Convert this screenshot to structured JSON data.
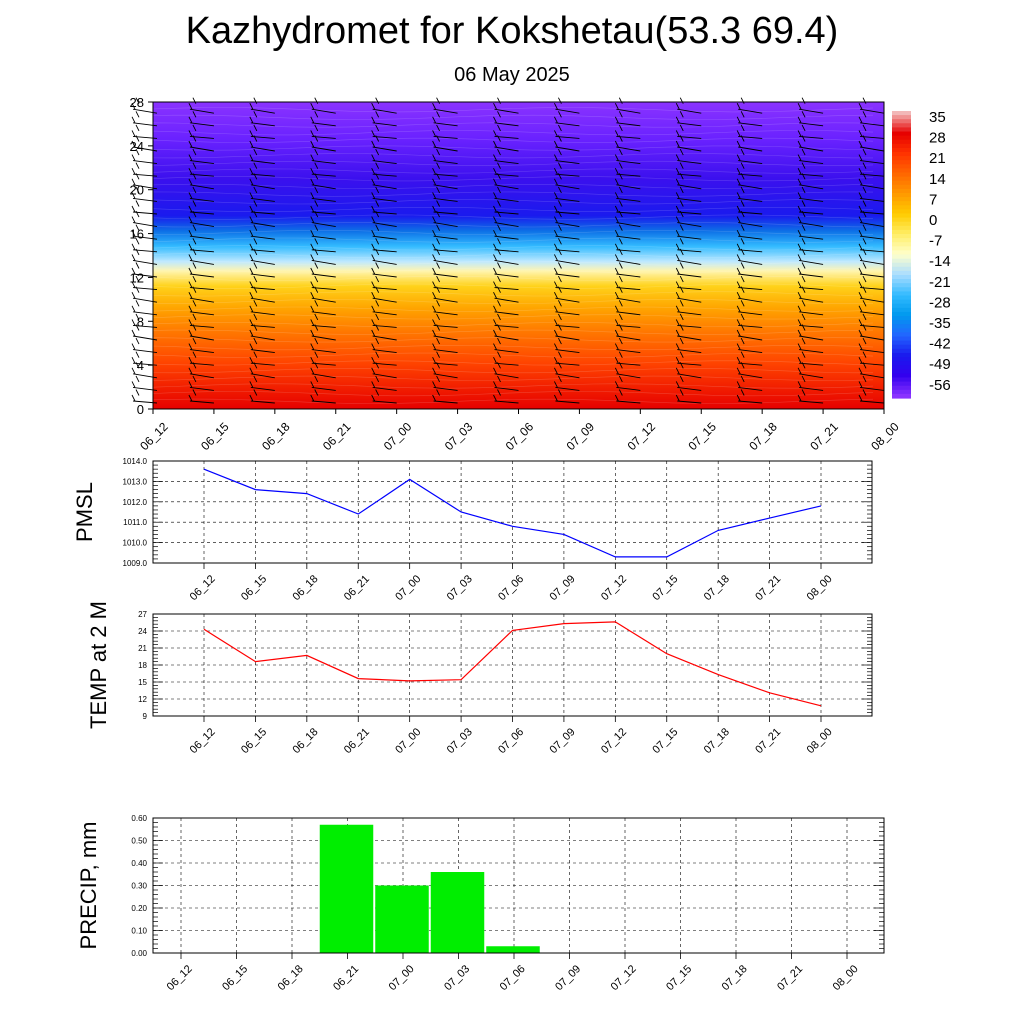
{
  "header": {
    "title": "Kazhydromet for Kokshetau(53.3 69.4)",
    "subtitle": "06 May 2025"
  },
  "colors": {
    "pmsl_line": "#0000ff",
    "temp_line": "#ff0000",
    "precip_bar": "#00ee00",
    "wind_barb": "#000000"
  },
  "chart_data": [
    {
      "type": "heatmap",
      "name": "temperature-wind-profile",
      "x": [
        "06_12",
        "06_15",
        "06_18",
        "06_21",
        "07_00",
        "07_03",
        "07_06",
        "07_09",
        "07_12",
        "07_15",
        "07_18",
        "07_21",
        "08_00"
      ],
      "ylim": [
        0,
        28
      ],
      "yticks": [
        "0",
        "4",
        "8",
        "12",
        "16",
        "20",
        "24",
        "28"
      ],
      "colorbar": {
        "labels": [
          "35",
          "28",
          "21",
          "14",
          "7",
          "0",
          "-7",
          "-14",
          "-21",
          "-28",
          "-35",
          "-42",
          "-49",
          "-56"
        ],
        "colors": [
          "#f2b8b8",
          "#e60000",
          "#ff3300",
          "#ff6600",
          "#ff9900",
          "#ffcc00",
          "#ffee66",
          "#ffffcc",
          "#aaddff",
          "#33bbff",
          "#0099ee",
          "#2266ff",
          "#1a1aee",
          "#3300ee",
          "#8a33ff"
        ]
      },
      "grid": false,
      "overlay": "wind-barbs"
    },
    {
      "type": "line",
      "ylabel": "PMSL",
      "categories": [
        "06_12",
        "06_15",
        "06_18",
        "06_21",
        "07_00",
        "07_03",
        "07_06",
        "07_09",
        "07_12",
        "07_15",
        "07_18",
        "07_21",
        "08_00"
      ],
      "values": [
        1013.6,
        1012.6,
        1012.4,
        1011.4,
        1013.1,
        1011.5,
        1010.8,
        1010.4,
        1009.3,
        1009.3,
        1010.6,
        1011.2,
        1011.8
      ],
      "ylim": [
        1009.0,
        1014.0
      ],
      "yticks": [
        "1009.0",
        "1010.0",
        "1011.0",
        "1012.0",
        "1013.0",
        "1014.0"
      ],
      "grid": true
    },
    {
      "type": "line",
      "ylabel": "TEMP at 2 M",
      "categories": [
        "06_12",
        "06_15",
        "06_18",
        "06_21",
        "07_00",
        "07_03",
        "07_06",
        "07_09",
        "07_12",
        "07_15",
        "07_18",
        "07_21",
        "08_00"
      ],
      "values": [
        24.3,
        18.6,
        19.7,
        15.6,
        15.2,
        15.4,
        24.1,
        25.3,
        25.6,
        20.0,
        16.3,
        13.1,
        10.8
      ],
      "ylim": [
        9,
        27
      ],
      "yticks": [
        "9",
        "12",
        "15",
        "18",
        "21",
        "24",
        "27"
      ],
      "grid": true
    },
    {
      "type": "bar",
      "ylabel": "PRECIP, mm",
      "categories": [
        "06_12",
        "06_15",
        "06_18",
        "06_21",
        "07_00",
        "07_03",
        "07_06",
        "07_09",
        "07_12",
        "07_15",
        "07_18",
        "07_21",
        "08_00"
      ],
      "values": [
        0,
        0,
        0,
        0.57,
        0.3,
        0.36,
        0.03,
        0,
        0,
        0,
        0,
        0,
        0
      ],
      "ylim": [
        0,
        0.6
      ],
      "yticks": [
        "0.00",
        "0.10",
        "0.20",
        "0.30",
        "0.40",
        "0.50",
        "0.60"
      ],
      "grid": true
    }
  ]
}
